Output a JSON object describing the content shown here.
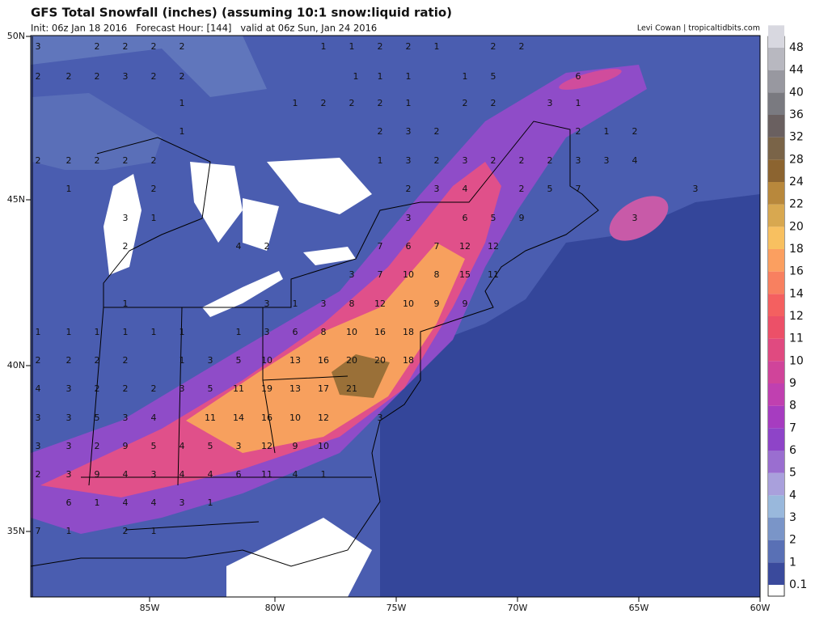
{
  "header": {
    "title": "GFS Total Snowfall (inches) (assuming 10:1 snow:liquid ratio)",
    "init": "Init: 06z Jan 18 2016   Forecast Hour: [144]   valid at 06z Sun, Jan 24 2016",
    "credit": "Levi Cowan | tropicaltidbits.com"
  },
  "map": {
    "lon_labels": [
      "85W",
      "80W",
      "75W",
      "70W",
      "65W",
      "60W"
    ],
    "lat_labels": [
      "50N",
      "45N",
      "40N",
      "35N"
    ],
    "point_values": [
      3,
      2,
      2,
      2,
      2,
      1,
      1,
      2,
      2,
      1,
      2,
      2,
      2,
      2,
      2,
      3,
      2,
      2,
      1,
      1,
      1,
      1,
      5,
      6,
      1,
      1,
      2,
      2,
      2,
      1,
      2,
      2,
      3,
      1,
      1,
      2,
      3,
      2,
      2,
      1,
      2,
      2,
      2,
      2,
      2,
      2,
      1,
      3,
      2,
      3,
      2,
      2,
      2,
      3,
      3,
      4,
      1,
      2,
      2,
      3,
      4,
      2,
      5,
      7,
      3,
      3,
      1,
      3,
      6,
      5,
      9,
      3,
      2,
      4,
      2,
      7,
      6,
      7,
      12,
      12,
      3,
      7,
      10,
      8,
      15,
      11,
      1,
      3,
      1,
      3,
      8,
      12,
      10,
      9,
      9,
      1,
      1,
      1,
      1,
      1,
      1,
      1,
      3,
      6,
      8,
      10,
      16,
      18,
      2,
      2,
      2,
      2,
      1,
      3,
      5,
      10,
      13,
      16,
      20,
      20,
      18,
      4,
      3,
      2,
      2,
      2,
      3,
      5,
      11,
      19,
      13,
      17,
      21,
      3,
      3,
      5,
      3,
      4,
      11,
      14,
      16,
      10,
      12,
      3,
      3,
      3,
      2,
      9,
      5,
      4,
      5,
      3,
      12,
      9,
      10,
      2,
      3,
      9,
      4,
      3,
      4,
      4,
      6,
      11,
      4,
      1,
      6,
      1,
      4,
      4,
      3,
      1,
      7,
      1,
      2,
      1
    ]
  },
  "colorbar": {
    "levels": [
      "0.1",
      "1",
      "2",
      "3",
      "4",
      "5",
      "6",
      "7",
      "8",
      "9",
      "10",
      "11",
      "12",
      "14",
      "16",
      "18",
      "20",
      "22",
      "24",
      "28",
      "32",
      "36",
      "40",
      "44",
      "48"
    ]
  }
}
